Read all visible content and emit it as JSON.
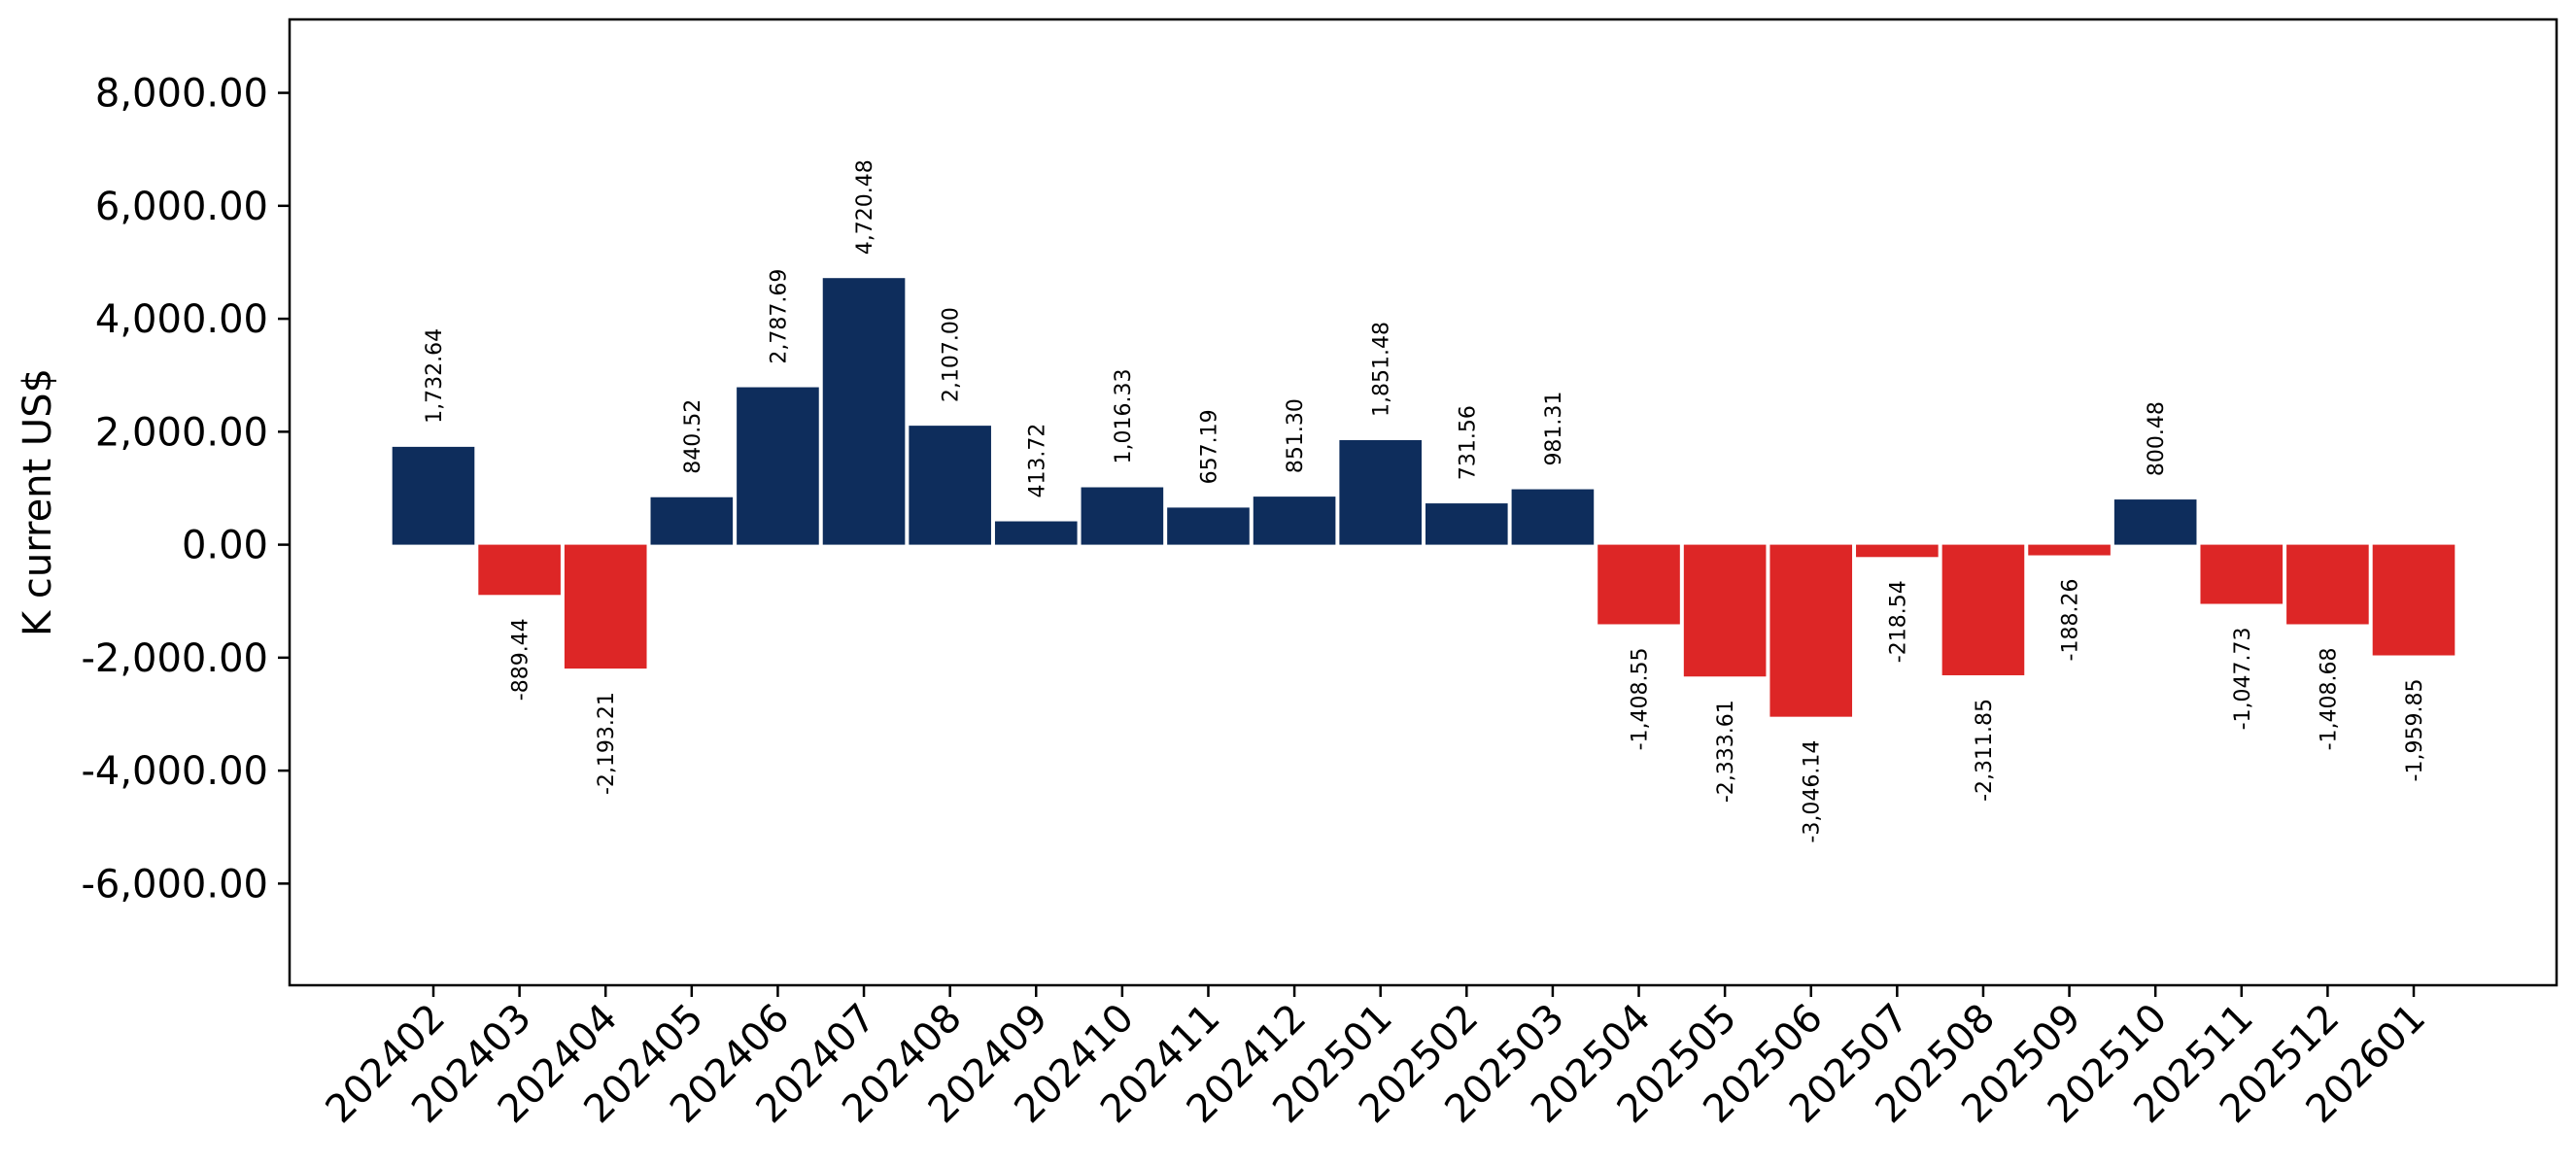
{
  "chart_data": {
    "type": "bar",
    "title": "",
    "xlabel": "",
    "ylabel": "K current US$",
    "ylim": [
      -7800,
      9300
    ],
    "yticks": [
      -6000,
      -4000,
      -2000,
      0,
      2000,
      4000,
      6000,
      8000
    ],
    "ytick_labels": [
      "-6,000.00",
      "-4,000.00",
      "-2,000.00",
      "0.00",
      "2,000.00",
      "4,000.00",
      "6,000.00",
      "8,000.00"
    ],
    "grid": false,
    "colors": {
      "positive": "#0e2d5c",
      "negative": "#dd2626"
    },
    "categories": [
      "202402",
      "202403",
      "202404",
      "202405",
      "202406",
      "202407",
      "202408",
      "202409",
      "202410",
      "202411",
      "202412",
      "202501",
      "202502",
      "202503",
      "202504",
      "202505",
      "202506",
      "202507",
      "202508",
      "202509",
      "202510",
      "202511",
      "202512",
      "202601"
    ],
    "values": [
      1732.64,
      -889.44,
      -2193.21,
      840.52,
      2787.69,
      4720.48,
      2107.0,
      413.72,
      1016.33,
      657.19,
      851.3,
      1851.48,
      731.56,
      981.31,
      -1408.55,
      -2333.61,
      -3046.14,
      -218.54,
      -2311.85,
      -188.26,
      800.48,
      -1047.73,
      -1408.68,
      -1959.85
    ],
    "value_labels": [
      "1,732.64",
      "-889.44",
      "-2,193.21",
      "840.52",
      "2,787.69",
      "4,720.48",
      "2,107.00",
      "413.72",
      "1,016.33",
      "657.19",
      "851.30",
      "1,851.48",
      "731.56",
      "981.31",
      "-1,408.55",
      "-2,333.61",
      "-3,046.14",
      "-218.54",
      "-2,311.85",
      "-188.26",
      "800.48",
      "-1,047.73",
      "-1,408.68",
      "-1,959.85"
    ]
  }
}
